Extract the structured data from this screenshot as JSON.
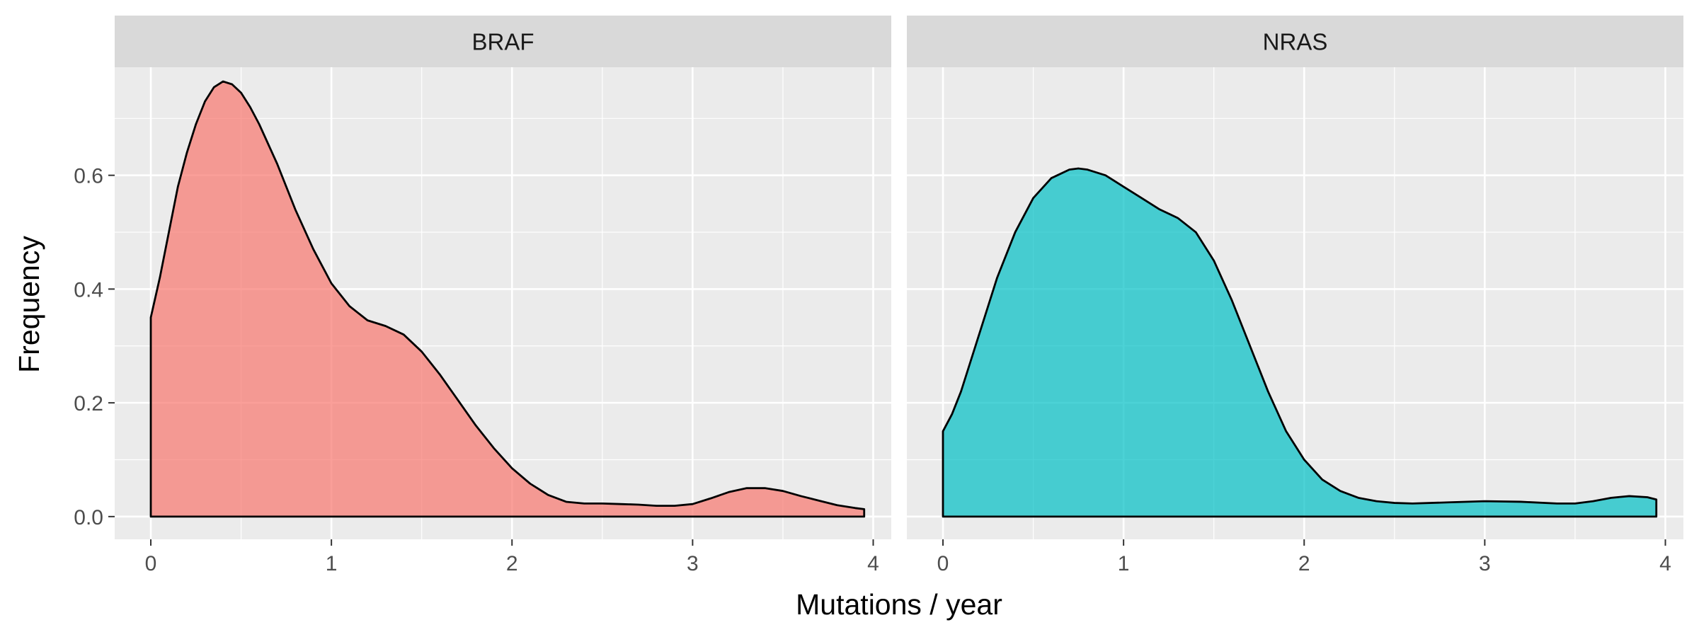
{
  "chart_data": {
    "type": "area",
    "chart_kind": "faceted density plot",
    "xlabel": "Mutations / year",
    "ylabel": "Frequency",
    "xlim": [
      -0.2,
      4.1
    ],
    "ylim": [
      -0.04,
      0.79
    ],
    "x_ticks": [
      0,
      1,
      2,
      3,
      4
    ],
    "y_ticks": [
      0.0,
      0.2,
      0.4,
      0.6
    ],
    "y_tick_labels": [
      "0.0",
      "0.2",
      "0.4",
      "0.6"
    ],
    "grid": true,
    "legend": "none",
    "panel_background": "#EBEBEB",
    "strip_background": "#D9D9D9",
    "panels": [
      {
        "name": "BRAF",
        "fill": "#F8766D",
        "x": [
          0.0,
          0.05,
          0.1,
          0.15,
          0.2,
          0.25,
          0.3,
          0.35,
          0.4,
          0.45,
          0.5,
          0.55,
          0.6,
          0.7,
          0.8,
          0.9,
          1.0,
          1.1,
          1.2,
          1.3,
          1.4,
          1.5,
          1.6,
          1.7,
          1.8,
          1.9,
          2.0,
          2.1,
          2.2,
          2.3,
          2.4,
          2.5,
          2.6,
          2.7,
          2.8,
          2.9,
          3.0,
          3.1,
          3.2,
          3.3,
          3.4,
          3.5,
          3.6,
          3.7,
          3.8,
          3.9,
          3.95
        ],
        "y": [
          0.35,
          0.42,
          0.5,
          0.58,
          0.64,
          0.69,
          0.73,
          0.755,
          0.765,
          0.76,
          0.745,
          0.72,
          0.69,
          0.62,
          0.54,
          0.47,
          0.41,
          0.37,
          0.345,
          0.335,
          0.32,
          0.29,
          0.25,
          0.205,
          0.16,
          0.12,
          0.085,
          0.058,
          0.038,
          0.026,
          0.023,
          0.023,
          0.022,
          0.021,
          0.019,
          0.019,
          0.022,
          0.032,
          0.043,
          0.05,
          0.05,
          0.045,
          0.036,
          0.028,
          0.02,
          0.015,
          0.013
        ]
      },
      {
        "name": "NRAS",
        "fill": "#00BFC4",
        "x": [
          0.0,
          0.05,
          0.1,
          0.15,
          0.2,
          0.3,
          0.4,
          0.5,
          0.6,
          0.7,
          0.75,
          0.8,
          0.9,
          1.0,
          1.1,
          1.2,
          1.3,
          1.4,
          1.5,
          1.6,
          1.7,
          1.8,
          1.9,
          2.0,
          2.1,
          2.2,
          2.3,
          2.4,
          2.5,
          2.6,
          2.8,
          3.0,
          3.2,
          3.4,
          3.5,
          3.6,
          3.7,
          3.8,
          3.9,
          3.95
        ],
        "y": [
          0.15,
          0.18,
          0.22,
          0.27,
          0.32,
          0.42,
          0.5,
          0.56,
          0.595,
          0.61,
          0.612,
          0.61,
          0.6,
          0.58,
          0.56,
          0.54,
          0.525,
          0.5,
          0.45,
          0.38,
          0.3,
          0.22,
          0.15,
          0.1,
          0.065,
          0.045,
          0.033,
          0.027,
          0.024,
          0.023,
          0.025,
          0.027,
          0.026,
          0.023,
          0.023,
          0.027,
          0.033,
          0.036,
          0.034,
          0.03
        ]
      }
    ]
  }
}
